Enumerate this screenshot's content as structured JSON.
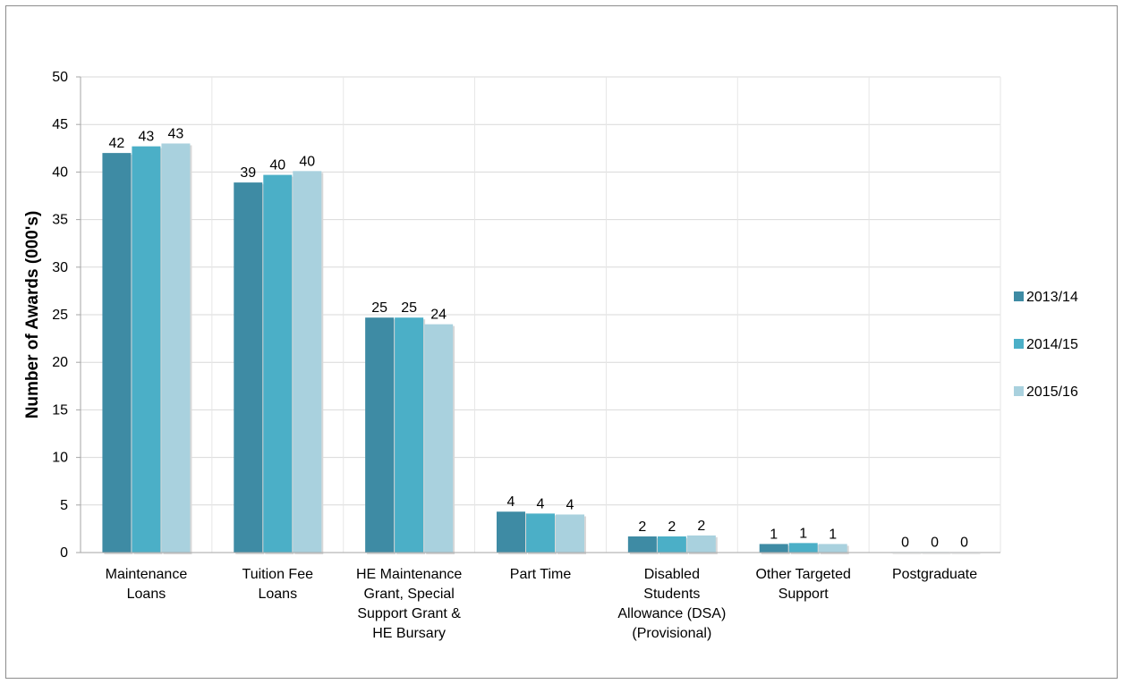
{
  "chart_data": {
    "type": "bar",
    "title": "",
    "xlabel": "",
    "ylabel": "Number  of  Awards (000's)",
    "ylim": [
      0,
      50
    ],
    "ytick_step": 5,
    "grid": true,
    "legend_position": "right",
    "categories": [
      [
        "Maintenance",
        "Loans"
      ],
      [
        "Tuition Fee",
        "Loans"
      ],
      [
        "HE Maintenance",
        "Grant, Special",
        "Support Grant &",
        "HE Bursary"
      ],
      [
        "Part Time"
      ],
      [
        "Disabled",
        "Students",
        "Allowance (DSA)",
        "(Provisional)"
      ],
      [
        "Other Targeted",
        "Support"
      ],
      [
        "Postgraduate"
      ]
    ],
    "series": [
      {
        "name": "2013/14",
        "color": "#3e8ba4",
        "values": [
          42.0,
          38.9,
          24.7,
          4.3,
          1.7,
          0.9,
          0.05
        ],
        "labels": [
          "42",
          "39",
          "25",
          "4",
          "2",
          "1",
          "0"
        ]
      },
      {
        "name": "2014/15",
        "color": "#4bafc7",
        "values": [
          42.7,
          39.7,
          24.7,
          4.1,
          1.7,
          1.0,
          0.05
        ],
        "labels": [
          "43",
          "40",
          "25",
          "4",
          "2",
          "1",
          "0"
        ]
      },
      {
        "name": "2015/16",
        "color": "#a9d1de",
        "values": [
          43.0,
          40.1,
          24.0,
          4.0,
          1.8,
          0.9,
          0.05
        ],
        "labels": [
          "43",
          "40",
          "24",
          "4",
          "2",
          "1",
          "0"
        ]
      }
    ]
  }
}
